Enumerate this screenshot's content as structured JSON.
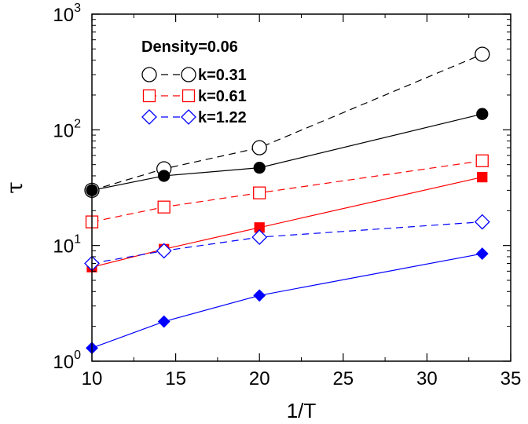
{
  "chart_data": {
    "type": "line",
    "xlabel": "1/T",
    "ylabel": "τ",
    "xlim": [
      10,
      35
    ],
    "ylim": [
      1,
      1000
    ],
    "yscale": "log",
    "xticks": [
      10,
      15,
      20,
      25,
      30,
      35
    ],
    "yticks": [
      {
        "base": "10",
        "exp": "0",
        "value": 1
      },
      {
        "base": "10",
        "exp": "1",
        "value": 10
      },
      {
        "base": "10",
        "exp": "2",
        "value": 100
      },
      {
        "base": "10",
        "exp": "3",
        "value": 1000
      }
    ],
    "grid": false,
    "legend_title": "Density=0.06",
    "legend_position": "top-left",
    "x": [
      10,
      14.3,
      20,
      33.3
    ],
    "series": [
      {
        "name": "k=0.31",
        "style": "dashed",
        "marker": "circle",
        "filled": false,
        "color": "#000000",
        "values": [
          30,
          46,
          70,
          450
        ],
        "in_legend": true
      },
      {
        "style": "solid",
        "marker": "circle",
        "filled": true,
        "color": "#000000",
        "values": [
          30,
          40,
          47,
          137
        ],
        "in_legend": false
      },
      {
        "name": "k=0.61",
        "style": "dashed",
        "marker": "square",
        "filled": false,
        "color": "#ff0000",
        "values": [
          16,
          21.5,
          28.5,
          54
        ],
        "in_legend": true
      },
      {
        "style": "solid",
        "marker": "square",
        "filled": true,
        "color": "#ff0000",
        "values": [
          6.5,
          9.3,
          14.3,
          39
        ],
        "in_legend": false
      },
      {
        "name": "k=1.22",
        "style": "dashed",
        "marker": "diamond",
        "filled": false,
        "color": "#0000ff",
        "values": [
          7,
          9,
          11.8,
          16
        ],
        "in_legend": true
      },
      {
        "style": "solid",
        "marker": "diamond",
        "filled": true,
        "color": "#0000ff",
        "values": [
          1.3,
          2.2,
          3.7,
          8.5
        ],
        "in_legend": false
      }
    ]
  }
}
